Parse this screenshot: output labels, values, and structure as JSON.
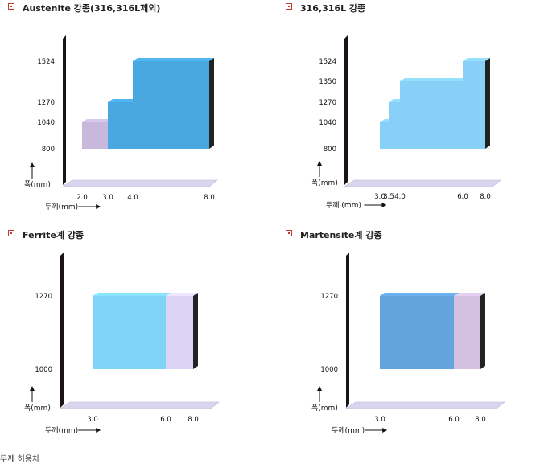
{
  "footer_text": "두께 허용차",
  "chart_data": [
    {
      "type": "bar",
      "title": "Austenite 강종(316,316L제외)",
      "xlabel": "두께(mm)",
      "ylabel": "폭(mm)",
      "x_ticks": [
        "2.0",
        "3.0",
        "4.0",
        "8.0"
      ],
      "y_ticks": [
        "800",
        "1040",
        "1270",
        "1524"
      ],
      "series": [
        {
          "range_x": [
            2.0,
            3.0
          ],
          "range_y": [
            800,
            1040
          ],
          "color": "#c8b8dc"
        },
        {
          "range_x": [
            3.0,
            4.0
          ],
          "range_y": [
            800,
            1270
          ],
          "color": "#4aa8e0"
        },
        {
          "range_x": [
            4.0,
            8.0
          ],
          "range_y": [
            800,
            1524
          ],
          "color": "#4aa8e0"
        }
      ]
    },
    {
      "type": "bar",
      "title": "316,316L 강종",
      "xlabel": "두께 (mm)",
      "ylabel": "폭(mm)",
      "x_ticks": [
        "3.0",
        "3.5",
        "4.0",
        "6.0",
        "8.0"
      ],
      "y_ticks": [
        "800",
        "1040",
        "1270",
        "1350",
        "1524"
      ],
      "series": [
        {
          "range_x": [
            3.0,
            3.5
          ],
          "range_y": [
            800,
            1040
          ],
          "color": "#88d0f8"
        },
        {
          "range_x": [
            3.5,
            4.0
          ],
          "range_y": [
            800,
            1270
          ],
          "color": "#88d0f8"
        },
        {
          "range_x": [
            4.0,
            6.0
          ],
          "range_y": [
            800,
            1350
          ],
          "color": "#88d0f8"
        },
        {
          "range_x": [
            6.0,
            8.0
          ],
          "range_y": [
            800,
            1524
          ],
          "color": "#88d0f8"
        }
      ]
    },
    {
      "type": "bar",
      "title": "Ferrite계 강종",
      "xlabel": "두께(mm)",
      "ylabel": "폭(mm)",
      "x_ticks": [
        "3.0",
        "6.0",
        "8.0"
      ],
      "y_ticks": [
        "1000",
        "1270"
      ],
      "series": [
        {
          "range_x": [
            3.0,
            6.0
          ],
          "range_y": [
            1000,
            1270
          ],
          "color": "#80d4f8"
        },
        {
          "range_x": [
            6.0,
            8.0
          ],
          "range_y": [
            1000,
            1270
          ],
          "color": "#dcd4f4"
        }
      ]
    },
    {
      "type": "bar",
      "title": "Martensite계 강종",
      "xlabel": "두께(mm)",
      "ylabel": "폭(mm)",
      "x_ticks": [
        "3.0",
        "6.0",
        "8.0"
      ],
      "y_ticks": [
        "1000",
        "1270"
      ],
      "series": [
        {
          "range_x": [
            3.0,
            6.0
          ],
          "range_y": [
            1000,
            1270
          ],
          "color": "#64a4dc"
        },
        {
          "range_x": [
            6.0,
            8.0
          ],
          "range_y": [
            1000,
            1270
          ],
          "color": "#d4c0e0"
        }
      ]
    }
  ]
}
